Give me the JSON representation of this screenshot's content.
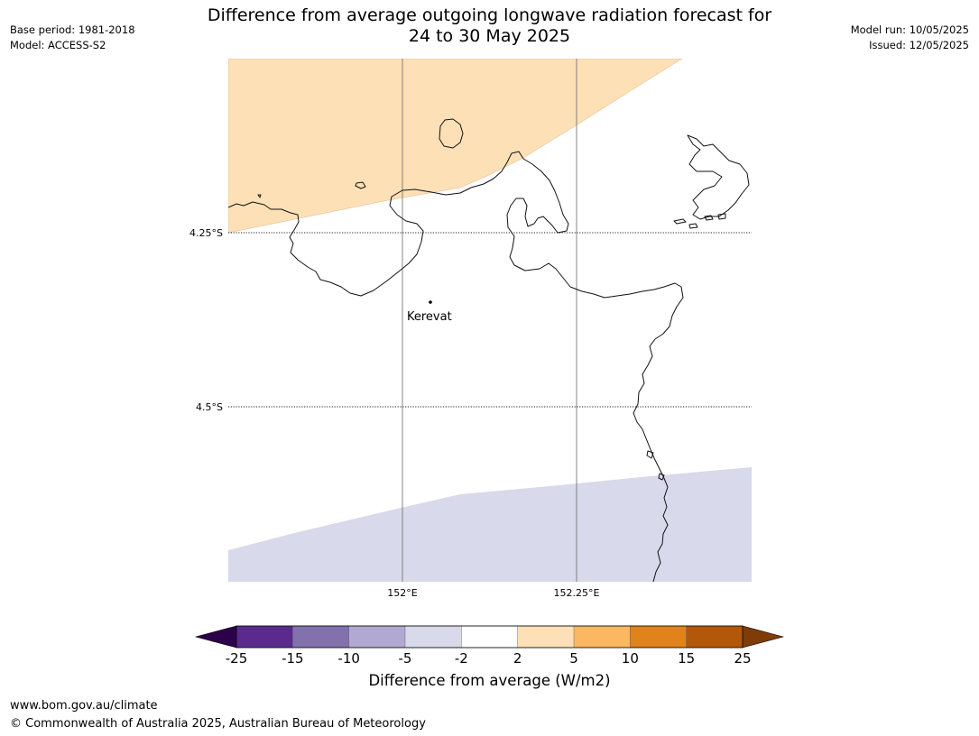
{
  "title": {
    "line1": "Difference from average outgoing longwave radiation forecast for",
    "line2": "24 to 30 May 2025"
  },
  "meta_left": {
    "base_period": "Base period: 1981-2018",
    "model": "Model: ACCESS-S2"
  },
  "meta_right": {
    "model_run": "Model run: 10/05/2025",
    "issued": "Issued: 12/05/2025"
  },
  "map": {
    "lat_labels": [
      "4.25°S",
      "4.5°S"
    ],
    "lon_labels": [
      "152°E",
      "152.25°E"
    ],
    "place": "Kerevat",
    "shaded_regions": [
      {
        "category": "2 to 5",
        "color": "#fde0b6"
      },
      {
        "category": "-5 to -2",
        "color": "#d8d9ea"
      }
    ]
  },
  "colorbar": {
    "title": "Difference from average (W/m2)",
    "ticks": [
      "-25",
      "-15",
      "-10",
      "-5",
      "-2",
      "2",
      "5",
      "10",
      "15",
      "25"
    ],
    "colors": [
      "#5a2b8c",
      "#8371ae",
      "#b1a9d2",
      "#d8d9ea",
      "#ffffff",
      "#fde0b6",
      "#fbb761",
      "#e0831a",
      "#b3580a"
    ],
    "under_color": "#2d004b",
    "over_color": "#7f3b08"
  },
  "footer": {
    "url": "www.bom.gov.au/climate",
    "copyright": "© Commonwealth of Australia 2025, Australian Bureau of Meteorology"
  }
}
